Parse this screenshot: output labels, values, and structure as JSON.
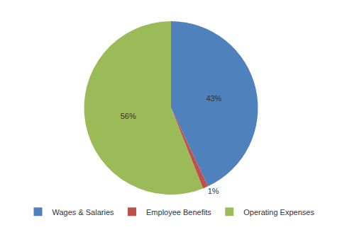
{
  "chart_data": {
    "type": "pie",
    "categories": [
      "Wages & Salaries",
      "Employee Benefits",
      "Operating Expenses"
    ],
    "values": [
      43,
      1,
      56
    ],
    "value_labels": [
      "43%",
      "1%",
      "56%"
    ],
    "colors": [
      "#4f81bd",
      "#c0504d",
      "#9bbb59"
    ],
    "data_labels": true,
    "legend": "bottom"
  }
}
